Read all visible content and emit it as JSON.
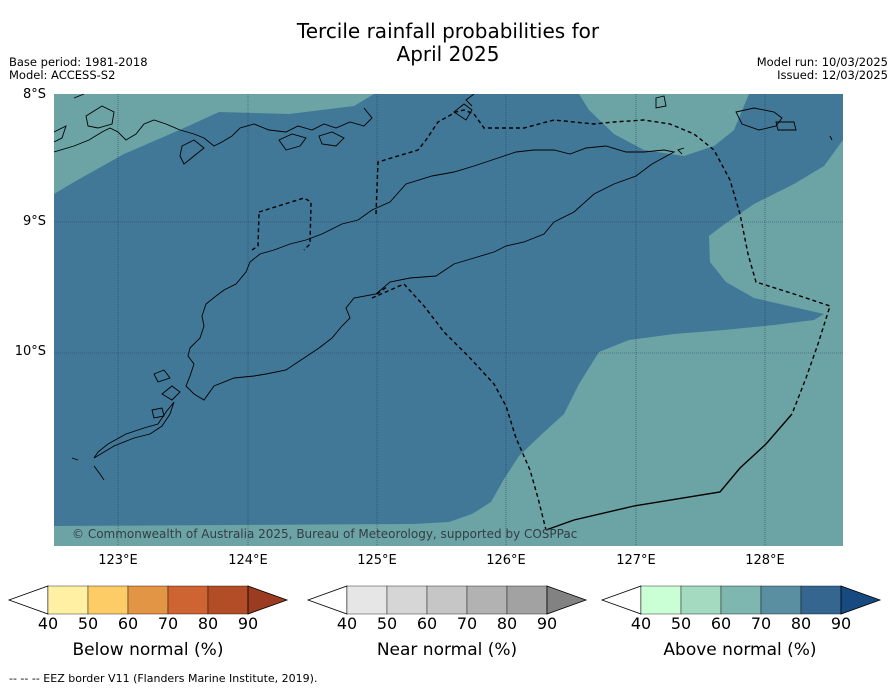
{
  "title_line1": "Tercile rainfall probabilities for",
  "title_line2": "April 2025",
  "meta_left": {
    "base_period": "Base period: 1981-2018",
    "model": "Model: ACCESS-S2"
  },
  "meta_right": {
    "model_run": "Model run: 10/03/2025",
    "issued": "Issued: 12/03/2025"
  },
  "map": {
    "lat_labels": [
      "8°S",
      "9°S",
      "10°S"
    ],
    "lon_labels": [
      "123°E",
      "124°E",
      "125°E",
      "126°E",
      "127°E",
      "128°E"
    ],
    "copyright": "© Commonwealth of Australia 2025, Bureau of Meteorology, supported by COSPPac",
    "colors": {
      "above_60_70": "#6ca4a6",
      "above_70_80": "#417898",
      "land_outline": "#000000",
      "eez": "#000000"
    }
  },
  "colorbars": [
    {
      "name": "below",
      "title": "Below normal (%)",
      "ticks": [
        "40",
        "50",
        "60",
        "70",
        "80",
        "90"
      ],
      "colors": [
        "#ffffff",
        "#fff0a3",
        "#fdcc66",
        "#e29544",
        "#cd6432",
        "#b24d27",
        "#9b3b21"
      ]
    },
    {
      "name": "near",
      "title": "Near normal (%)",
      "ticks": [
        "40",
        "50",
        "60",
        "70",
        "80",
        "90"
      ],
      "colors": [
        "#ffffff",
        "#e6e6e6",
        "#d6d6d6",
        "#c6c6c6",
        "#b2b2b2",
        "#a2a2a2",
        "#828282"
      ]
    },
    {
      "name": "above",
      "title": "Above normal (%)",
      "ticks": [
        "40",
        "50",
        "60",
        "70",
        "80",
        "90"
      ],
      "colors": [
        "#ffffff",
        "#caffd6",
        "#a4dabf",
        "#7eb6b0",
        "#5a8fa2",
        "#356690",
        "#164a80"
      ]
    }
  ],
  "footnote": "-- -- -- EEZ border V11 (Flanders Marine Institute, 2019)."
}
